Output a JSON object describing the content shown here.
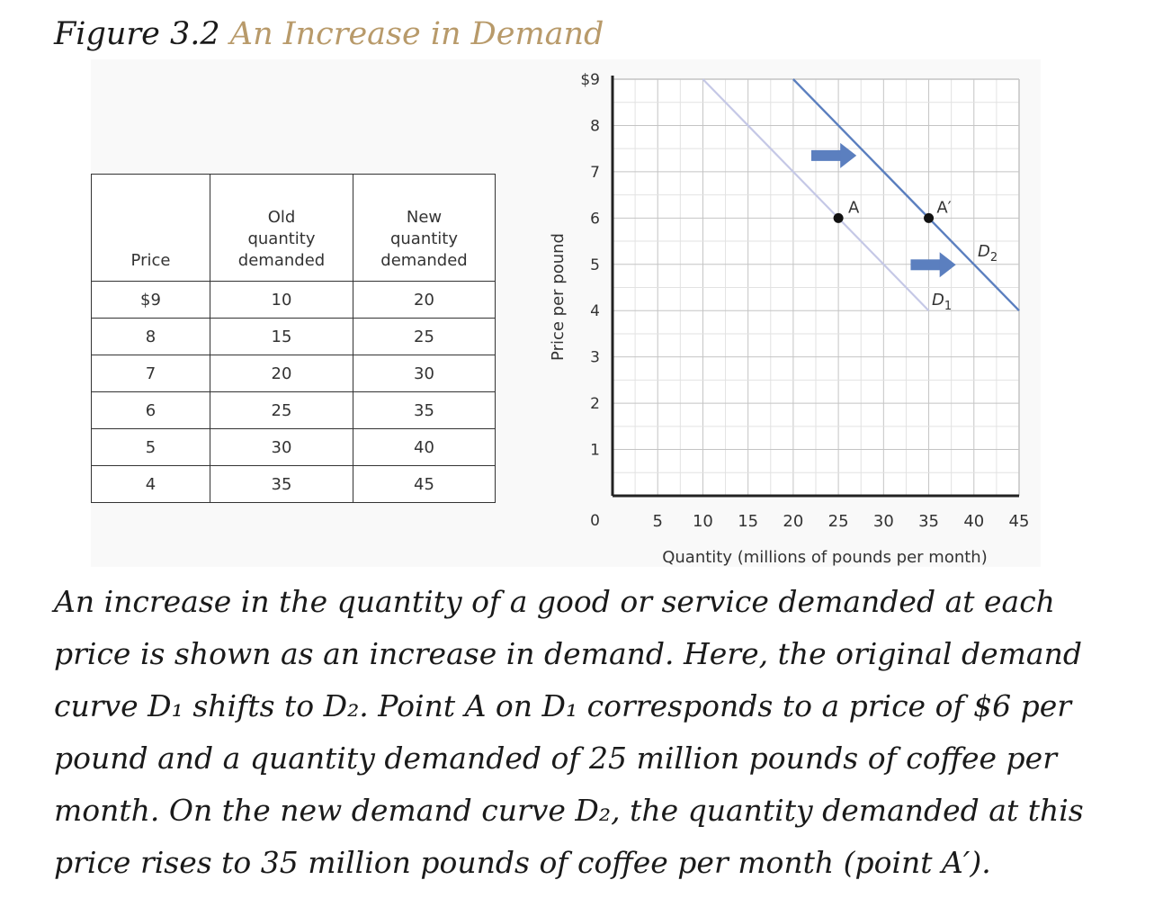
{
  "figure": {
    "label": "Figure 3.2",
    "subtitle": "An Increase in Demand",
    "caption": "An increase in the quantity of a good or service demanded at each price is shown as an increase in demand. Here, the original demand curve D₁ shifts to D₂. Point A on D₁ corresponds to a price of $6 per pound and a quantity demanded of 25 million pounds of coffee per month. On the new demand curve D₂, the quantity demanded at this price rises to 35 million pounds of coffee per month (point A′)."
  },
  "table": {
    "headers": {
      "price": "Price",
      "old_line1": "Old",
      "old_line2": "quantity",
      "old_line3": "demanded",
      "new_line1": "New",
      "new_line2": "quantity",
      "new_line3": "demanded"
    },
    "rows": [
      {
        "price": "$9",
        "old": "10",
        "new": "20"
      },
      {
        "price": "8",
        "old": "15",
        "new": "25"
      },
      {
        "price": "7",
        "old": "20",
        "new": "30"
      },
      {
        "price": "6",
        "old": "25",
        "new": "35"
      },
      {
        "price": "5",
        "old": "30",
        "new": "40"
      },
      {
        "price": "4",
        "old": "35",
        "new": "45"
      }
    ]
  },
  "chart_data": {
    "type": "line",
    "xlabel": "Quantity (millions of pounds per month)",
    "ylabel": "Price per pound",
    "xlim": [
      0,
      45
    ],
    "ylim": [
      0,
      9
    ],
    "x_ticks": [
      "5",
      "10",
      "15",
      "20",
      "25",
      "30",
      "35",
      "40",
      "45"
    ],
    "y_ticks": [
      "$9",
      "8",
      "7",
      "6",
      "5",
      "4",
      "3",
      "2",
      "1"
    ],
    "origin_label": "0",
    "grid": true,
    "series": [
      {
        "name": "D1",
        "color": "#c5c8e6",
        "points": [
          [
            10,
            9
          ],
          [
            15,
            8
          ],
          [
            20,
            7
          ],
          [
            25,
            6
          ],
          [
            30,
            5
          ],
          [
            35,
            4
          ]
        ]
      },
      {
        "name": "D2",
        "color": "#5b7fbf",
        "points": [
          [
            20,
            9
          ],
          [
            25,
            8
          ],
          [
            30,
            7
          ],
          [
            35,
            6
          ],
          [
            40,
            5
          ],
          [
            45,
            4
          ]
        ]
      }
    ],
    "points": [
      {
        "label": "A",
        "x": 25,
        "y": 6
      },
      {
        "label": "A′",
        "x": 35,
        "y": 6
      }
    ],
    "curve_labels": {
      "d1_main": "D",
      "d1_sub": "1",
      "d2_main": "D",
      "d2_sub": "2"
    },
    "arrows": [
      {
        "from": [
          22,
          7.35
        ],
        "to": [
          27,
          7.35
        ],
        "color": "#5b7fbf"
      },
      {
        "from": [
          33,
          4.99
        ],
        "to": [
          38,
          4.99
        ],
        "color": "#5b7fbf"
      }
    ]
  }
}
